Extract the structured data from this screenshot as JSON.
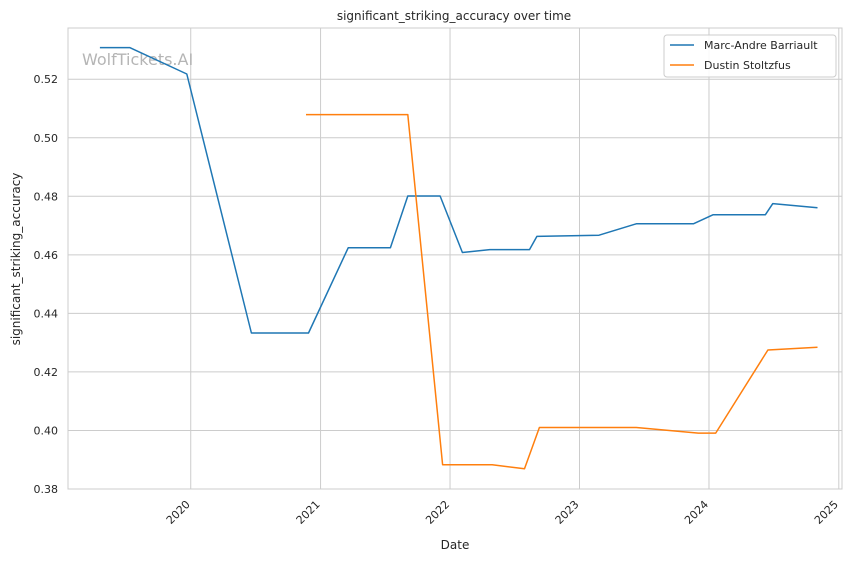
{
  "chart_data": {
    "type": "line",
    "title": "significant_striking_accuracy over time",
    "xlabel": "Date",
    "ylabel": "significant_striking_accuracy",
    "watermark": "WolfTickets.AI",
    "x_ticks": [
      "2020",
      "2021",
      "2022",
      "2023",
      "2024",
      "2025"
    ],
    "y_ticks": [
      "0.38",
      "0.40",
      "0.42",
      "0.44",
      "0.46",
      "0.48",
      "0.50",
      "0.52"
    ],
    "xlim": [
      "2019-01-20",
      "2025-01-10"
    ],
    "ylim": [
      0.38,
      0.5375
    ],
    "grid": true,
    "legend_position": "top-right",
    "series": [
      {
        "name": "Marc-Andre Barriault",
        "color": "#1f77b4",
        "points": [
          [
            "2019-04-20",
            0.5308
          ],
          [
            "2019-07-13",
            0.5308
          ],
          [
            "2019-12-21",
            0.5218
          ],
          [
            "2020-06-20",
            0.4333
          ],
          [
            "2020-11-28",
            0.4333
          ],
          [
            "2021-03-20",
            0.4624
          ],
          [
            "2021-07-17",
            0.4624
          ],
          [
            "2021-09-04",
            0.4801
          ],
          [
            "2021-12-04",
            0.4801
          ],
          [
            "2022-02-05",
            0.4608
          ],
          [
            "2022-04-23",
            0.4618
          ],
          [
            "2022-08-13",
            0.4618
          ],
          [
            "2022-09-03",
            0.4663
          ],
          [
            "2023-02-25",
            0.4667
          ],
          [
            "2023-06-10",
            0.4706
          ],
          [
            "2023-11-18",
            0.4706
          ],
          [
            "2024-01-13",
            0.4737
          ],
          [
            "2024-06-08",
            0.4737
          ],
          [
            "2024-06-29",
            0.4775
          ],
          [
            "2024-11-02",
            0.4761
          ]
        ]
      },
      {
        "name": "Dustin Stoltzfus",
        "color": "#ff7f0e",
        "points": [
          [
            "2020-11-21",
            0.5079
          ],
          [
            "2021-09-04",
            0.5079
          ],
          [
            "2021-12-11",
            0.3883
          ],
          [
            "2022-04-30",
            0.3883
          ],
          [
            "2022-07-30",
            0.3869
          ],
          [
            "2022-09-10",
            0.401
          ],
          [
            "2023-06-10",
            0.401
          ],
          [
            "2023-12-02",
            0.3991
          ],
          [
            "2024-01-20",
            0.3991
          ],
          [
            "2024-06-15",
            0.4275
          ],
          [
            "2024-11-02",
            0.4284
          ]
        ]
      }
    ]
  }
}
